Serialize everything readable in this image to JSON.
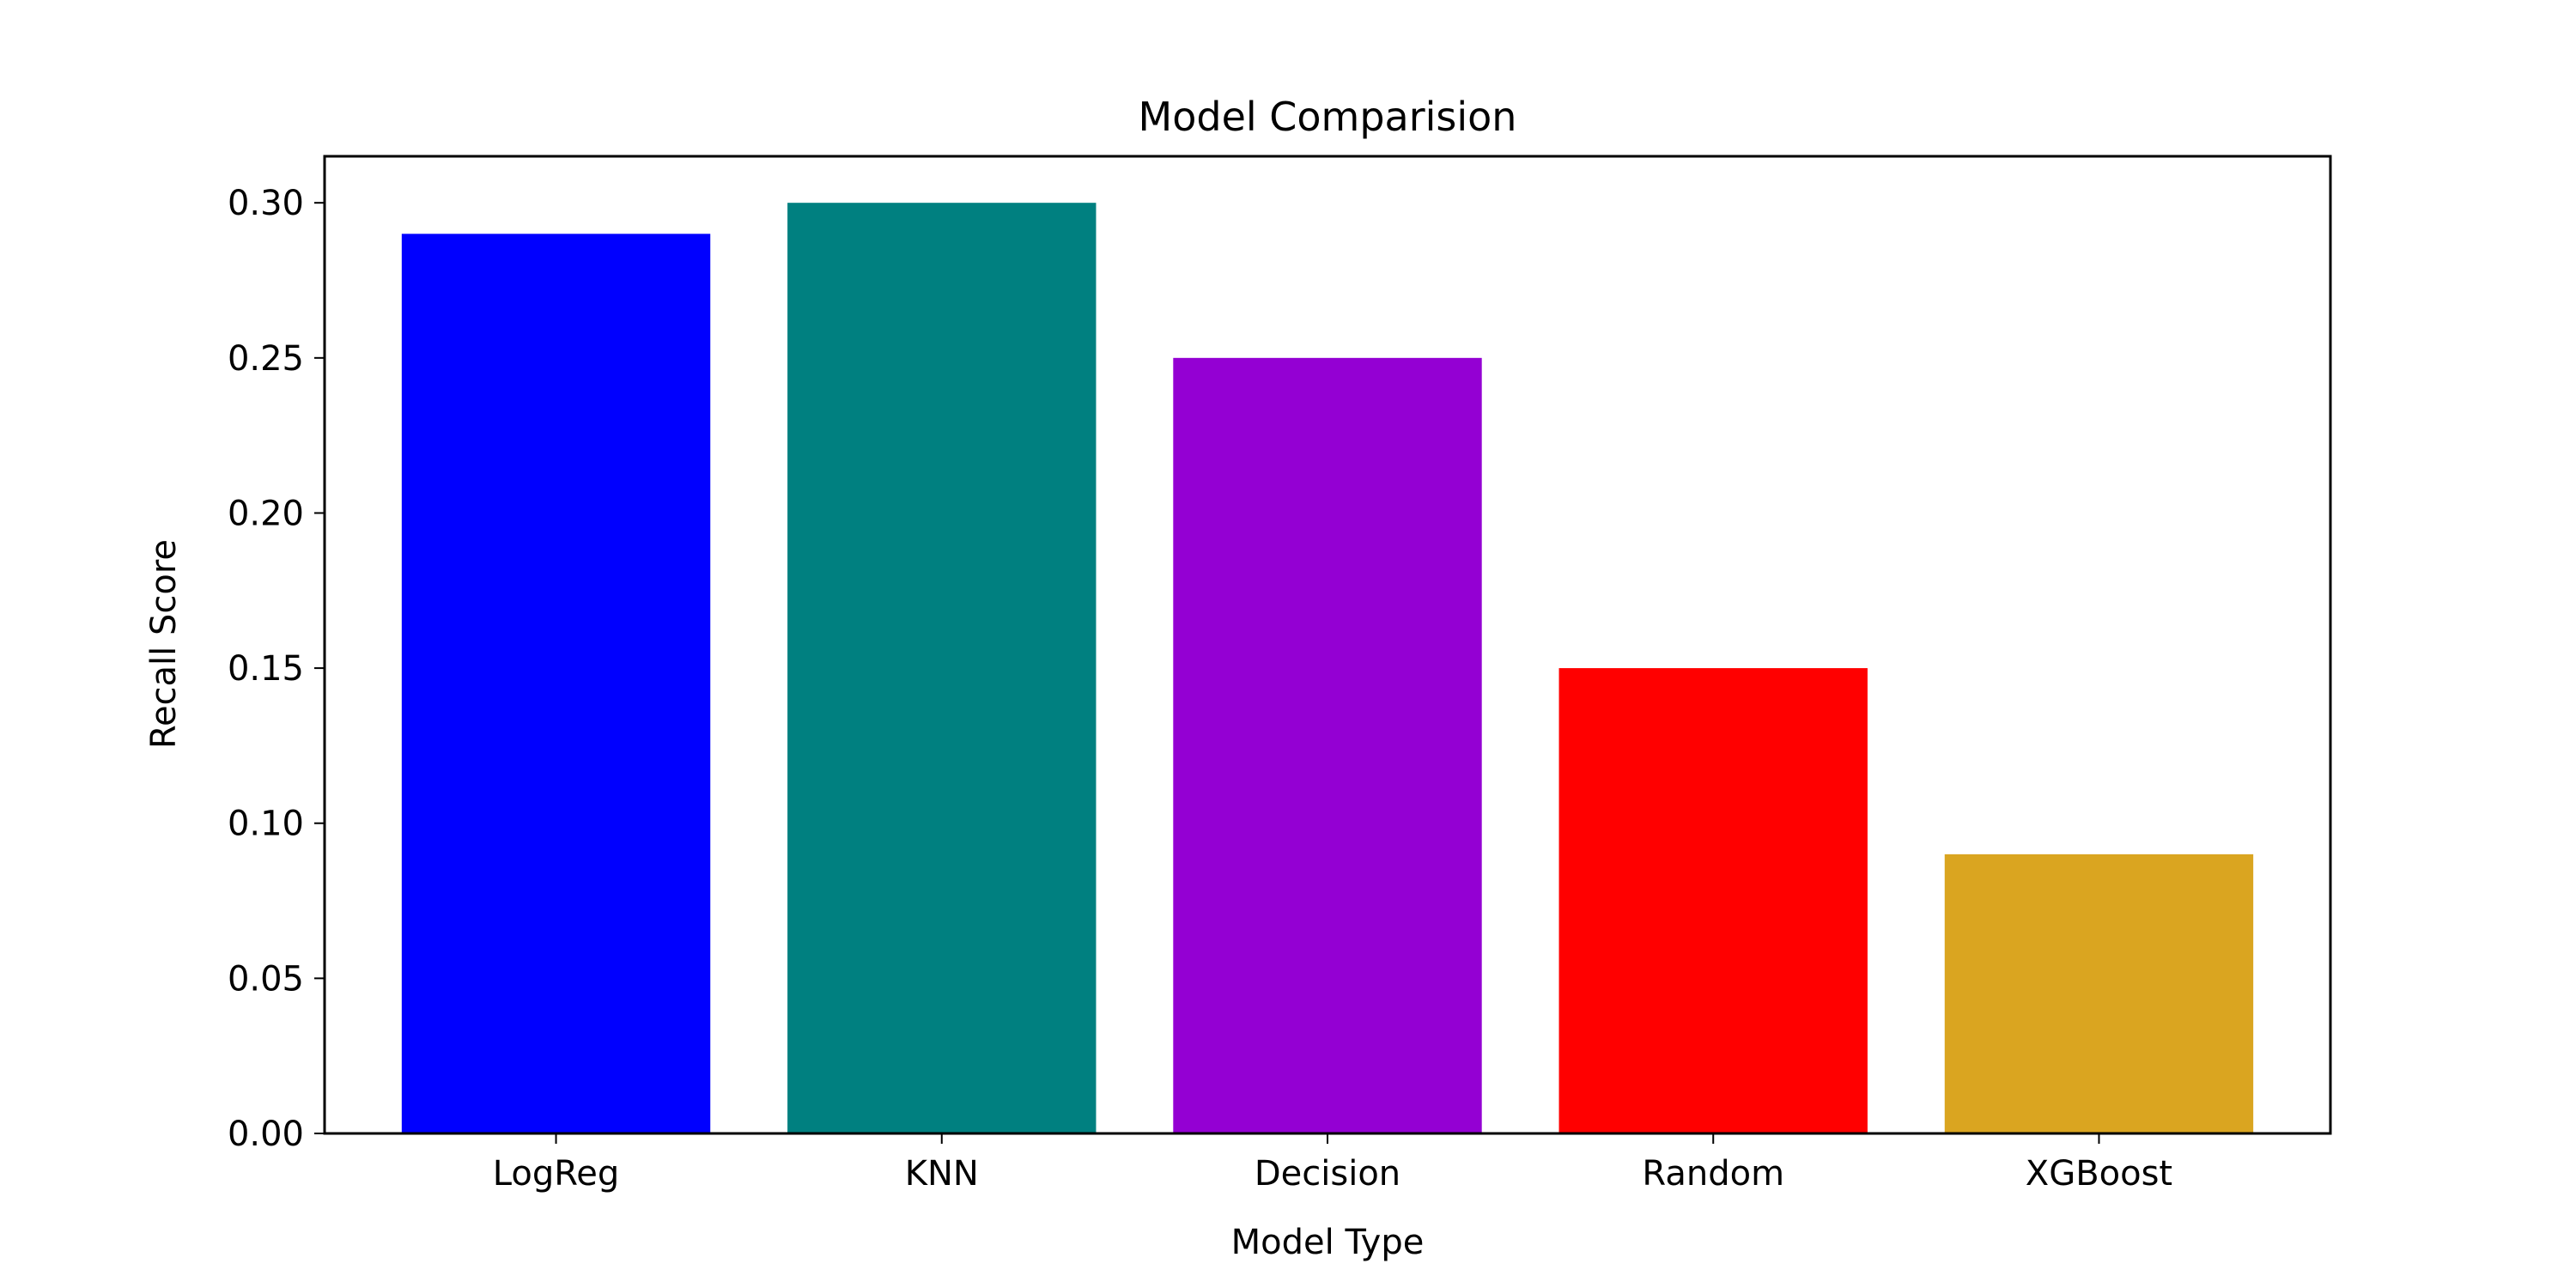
{
  "chart_data": {
    "type": "bar",
    "title": "Model Comparision",
    "xlabel": "Model Type",
    "ylabel": "Recall Score",
    "categories": [
      "LogReg",
      "KNN",
      "Decision",
      "Random",
      "XGBoost"
    ],
    "values": [
      0.29,
      0.3,
      0.25,
      0.15,
      0.09
    ],
    "colors": [
      "#0000ff",
      "#008080",
      "#9400d3",
      "#ff0000",
      "#daa520"
    ],
    "ylim": [
      0,
      0.315
    ],
    "yticks": [
      0.0,
      0.05,
      0.1,
      0.15,
      0.2,
      0.25,
      0.3
    ],
    "ytick_labels": [
      "0.00",
      "0.05",
      "0.10",
      "0.15",
      "0.20",
      "0.25",
      "0.30"
    ],
    "grid": false,
    "legend": "none"
  }
}
